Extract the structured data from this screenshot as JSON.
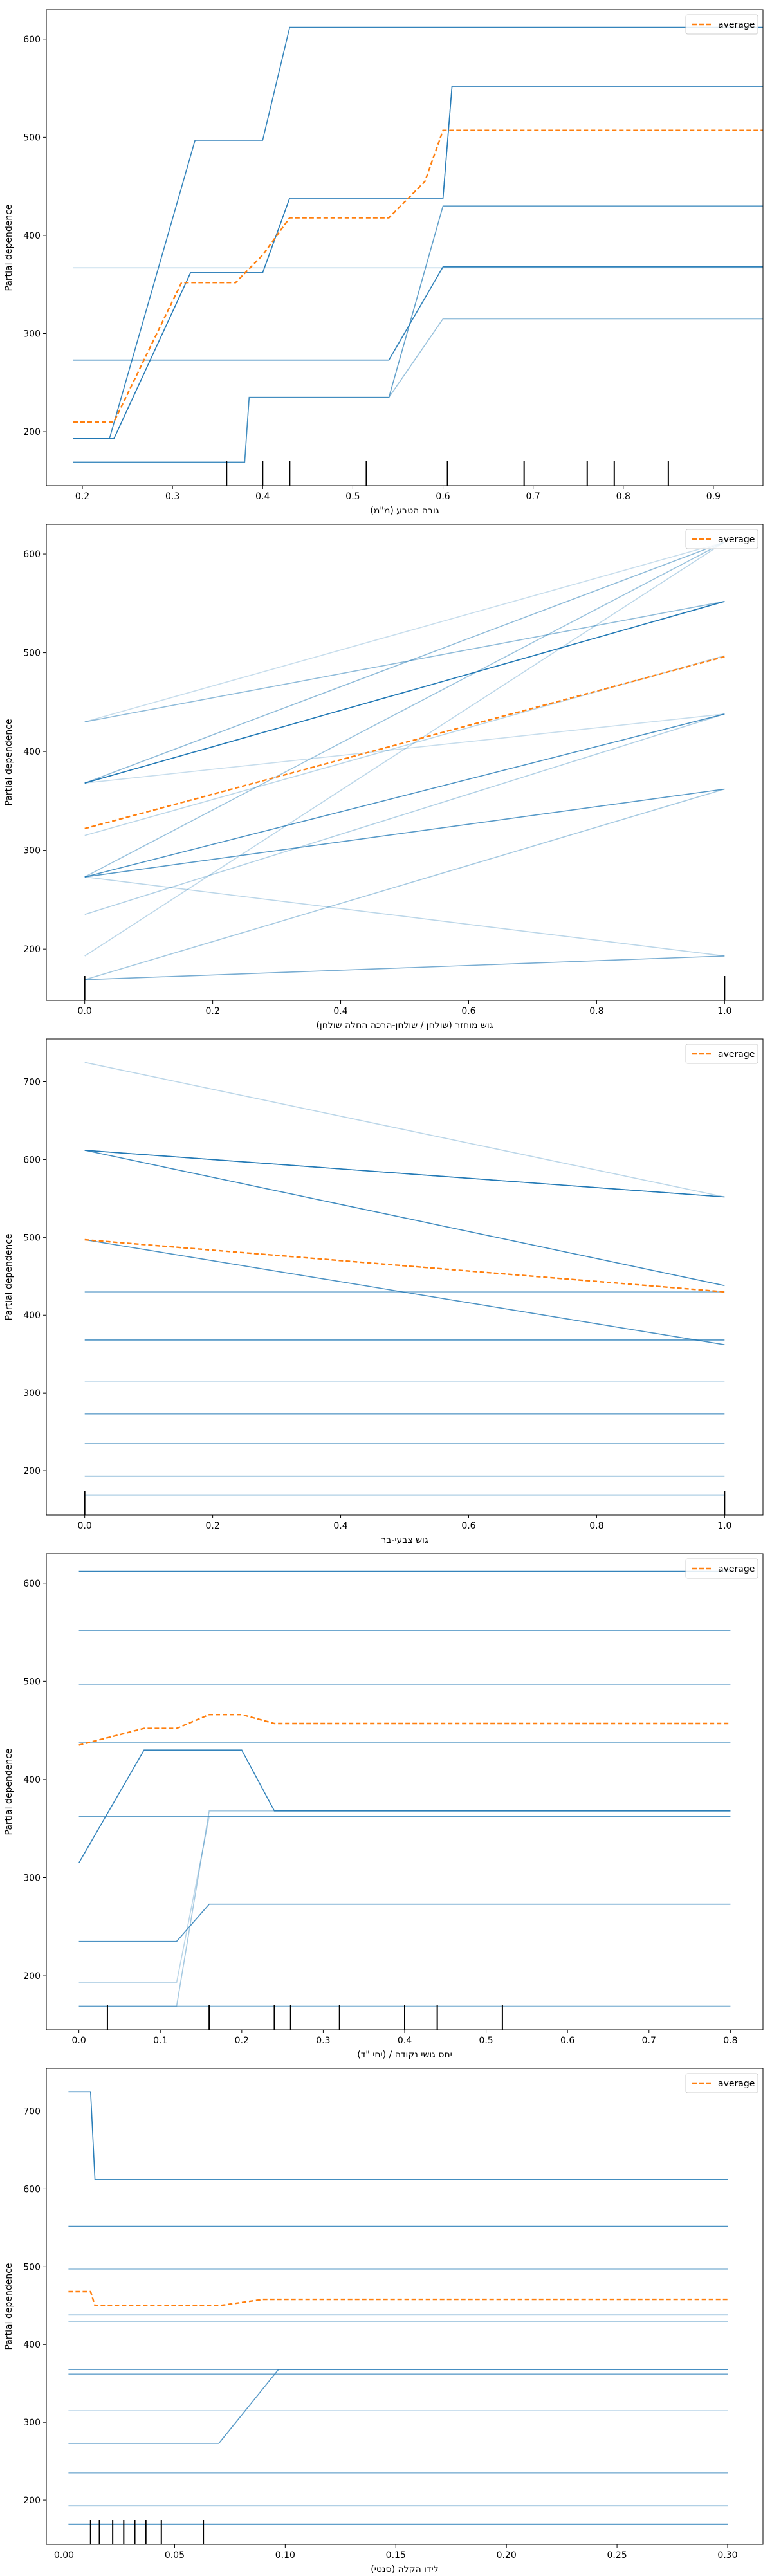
{
  "chart_data": [
    {
      "type": "line",
      "ylabel": "Partial dependence",
      "xlabel": "גובה הטבע (מ\"מ)",
      "legend": {
        "label": "average",
        "placement": "top-right"
      },
      "xlim": [
        0.16,
        0.955
      ],
      "ylim": [
        145,
        630
      ],
      "xticks": [
        0.2,
        0.3,
        0.4,
        0.5,
        0.6,
        0.7,
        0.8,
        0.9
      ],
      "yticks": [
        200,
        300,
        400,
        500,
        600
      ],
      "xtick_labels": [
        "0.2",
        "0.3",
        "0.4",
        "0.5",
        "0.6",
        "0.7",
        "0.8",
        "0.9"
      ],
      "ytick_labels": [
        "200",
        "300",
        "400",
        "500",
        "600"
      ],
      "grid": false,
      "rug": [
        0.36,
        0.4,
        0.43,
        0.515,
        0.605,
        0.69,
        0.76,
        0.79,
        0.85
      ],
      "ice_lines": [
        {
          "x": [
            0.19,
            0.23,
            0.325,
            0.4,
            0.43,
            0.955
          ],
          "y": [
            193,
            193,
            497,
            497,
            612,
            612
          ],
          "opacity": 0.9
        },
        {
          "x": [
            0.19,
            0.235,
            0.32,
            0.4,
            0.43,
            0.6,
            0.61,
            0.955
          ],
          "y": [
            193,
            193,
            362,
            362,
            438,
            438,
            552,
            552
          ],
          "opacity": 0.9
        },
        {
          "x": [
            0.19,
            0.235,
            0.32,
            0.4,
            0.43,
            0.6,
            0.61,
            0.955
          ],
          "y": [
            193,
            193,
            362,
            362,
            438,
            438,
            552,
            552
          ],
          "opacity": 0.6
        },
        {
          "x": [
            0.19,
            0.54,
            0.6,
            0.955
          ],
          "y": [
            273,
            273,
            368,
            368
          ],
          "opacity": 0.85
        },
        {
          "x": [
            0.19,
            0.54,
            0.6,
            0.955
          ],
          "y": [
            273,
            273,
            368,
            368
          ],
          "opacity": 0.45
        },
        {
          "x": [
            0.19,
            0.38,
            0.385,
            0.54,
            0.6,
            0.955
          ],
          "y": [
            169,
            169,
            235,
            235,
            430,
            430
          ],
          "opacity": 0.7
        },
        {
          "x": [
            0.19,
            0.38,
            0.385,
            0.54,
            0.6,
            0.955
          ],
          "y": [
            169,
            169,
            235,
            235,
            315,
            315
          ],
          "opacity": 0.45
        },
        {
          "x": [
            0.19,
            0.955
          ],
          "y": [
            367,
            367
          ],
          "opacity": 0.35
        }
      ],
      "average": {
        "x": [
          0.19,
          0.235,
          0.31,
          0.37,
          0.4,
          0.43,
          0.54,
          0.58,
          0.6,
          0.955
        ],
        "y": [
          210,
          210,
          352,
          352,
          380,
          418,
          418,
          455,
          507,
          507
        ]
      }
    },
    {
      "type": "line",
      "ylabel": "Partial dependence",
      "xlabel": "גוש מוחזר (שולחן / שולחן-הרכה החלה שולחן)",
      "legend": {
        "label": "average",
        "placement": "top-right"
      },
      "xlim": [
        -0.06,
        1.06
      ],
      "ylim": [
        148,
        630
      ],
      "xticks": [
        0.0,
        0.2,
        0.4,
        0.6,
        0.8,
        1.0
      ],
      "yticks": [
        200,
        300,
        400,
        500,
        600
      ],
      "xtick_labels": [
        "0.0",
        "0.2",
        "0.4",
        "0.6",
        "0.8",
        "1.0"
      ],
      "ytick_labels": [
        "200",
        "300",
        "400",
        "500",
        "600"
      ],
      "grid": false,
      "rug": [
        0.0,
        1.0
      ],
      "ice_lines": [
        {
          "x": [
            0,
            1
          ],
          "y": [
            368,
            552
          ],
          "opacity": 0.95
        },
        {
          "x": [
            0,
            1
          ],
          "y": [
            368,
            552
          ],
          "opacity": 0.7
        },
        {
          "x": [
            0,
            1
          ],
          "y": [
            273,
            438
          ],
          "opacity": 0.8
        },
        {
          "x": [
            0,
            1
          ],
          "y": [
            273,
            362
          ],
          "opacity": 0.75
        },
        {
          "x": [
            0,
            1
          ],
          "y": [
            273,
            612
          ],
          "opacity": 0.45
        },
        {
          "x": [
            0,
            1
          ],
          "y": [
            368,
            612
          ],
          "opacity": 0.5
        },
        {
          "x": [
            0,
            1
          ],
          "y": [
            430,
            552
          ],
          "opacity": 0.5
        },
        {
          "x": [
            0,
            1
          ],
          "y": [
            169,
            362
          ],
          "opacity": 0.4
        },
        {
          "x": [
            0,
            1
          ],
          "y": [
            169,
            193
          ],
          "opacity": 0.6
        },
        {
          "x": [
            0,
            1
          ],
          "y": [
            193,
            612
          ],
          "opacity": 0.3
        },
        {
          "x": [
            0,
            1
          ],
          "y": [
            235,
            438
          ],
          "opacity": 0.35
        },
        {
          "x": [
            0,
            1
          ],
          "y": [
            315,
            497
          ],
          "opacity": 0.3
        },
        {
          "x": [
            0,
            1
          ],
          "y": [
            273,
            193
          ],
          "opacity": 0.3
        },
        {
          "x": [
            0,
            1
          ],
          "y": [
            368,
            438
          ],
          "opacity": 0.25
        },
        {
          "x": [
            0,
            1
          ],
          "y": [
            430,
            612
          ],
          "opacity": 0.25
        }
      ],
      "average": {
        "x": [
          0,
          1
        ],
        "y": [
          322,
          496
        ]
      }
    },
    {
      "type": "line",
      "ylabel": "Partial dependence",
      "xlabel": "גוש צבעי-בר",
      "legend": {
        "label": "average",
        "placement": "top-right"
      },
      "xlim": [
        -0.06,
        1.06
      ],
      "ylim": [
        143,
        755
      ],
      "xticks": [
        0.0,
        0.2,
        0.4,
        0.6,
        0.8,
        1.0
      ],
      "yticks": [
        200,
        300,
        400,
        500,
        600,
        700
      ],
      "xtick_labels": [
        "0.0",
        "0.2",
        "0.4",
        "0.6",
        "0.8",
        "1.0"
      ],
      "ytick_labels": [
        "200",
        "300",
        "400",
        "500",
        "600",
        "700"
      ],
      "grid": false,
      "rug": [
        0.0,
        1.0
      ],
      "ice_lines": [
        {
          "x": [
            0,
            1
          ],
          "y": [
            725,
            552
          ],
          "opacity": 0.3
        },
        {
          "x": [
            0,
            1
          ],
          "y": [
            612,
            552
          ],
          "opacity": 0.95
        },
        {
          "x": [
            0,
            1
          ],
          "y": [
            612,
            552
          ],
          "opacity": 0.7
        },
        {
          "x": [
            0,
            1
          ],
          "y": [
            612,
            438
          ],
          "opacity": 0.85
        },
        {
          "x": [
            0,
            1
          ],
          "y": [
            497,
            362
          ],
          "opacity": 0.8
        },
        {
          "x": [
            0,
            1
          ],
          "y": [
            430,
            430
          ],
          "opacity": 0.6
        },
        {
          "x": [
            0,
            1
          ],
          "y": [
            368,
            368
          ],
          "opacity": 0.8
        },
        {
          "x": [
            0,
            1
          ],
          "y": [
            315,
            315
          ],
          "opacity": 0.3
        },
        {
          "x": [
            0,
            1
          ],
          "y": [
            273,
            273
          ],
          "opacity": 0.6
        },
        {
          "x": [
            0,
            1
          ],
          "y": [
            235,
            235
          ],
          "opacity": 0.5
        },
        {
          "x": [
            0,
            1
          ],
          "y": [
            193,
            193
          ],
          "opacity": 0.35
        },
        {
          "x": [
            0,
            1
          ],
          "y": [
            169,
            169
          ],
          "opacity": 0.7
        }
      ],
      "average": {
        "x": [
          0,
          1
        ],
        "y": [
          497,
          430
        ]
      }
    },
    {
      "type": "line",
      "ylabel": "Partial dependence",
      "xlabel": "יחס גושי נקודה / (יחי \"ד)",
      "legend": {
        "label": "average",
        "placement": "top-right"
      },
      "xlim": [
        -0.04,
        0.84
      ],
      "ylim": [
        145,
        630
      ],
      "xticks": [
        0.0,
        0.1,
        0.2,
        0.3,
        0.4,
        0.5,
        0.6,
        0.7,
        0.8
      ],
      "yticks": [
        200,
        300,
        400,
        500,
        600
      ],
      "xtick_labels": [
        "0.0",
        "0.1",
        "0.2",
        "0.3",
        "0.4",
        "0.5",
        "0.6",
        "0.7",
        "0.8"
      ],
      "ytick_labels": [
        "200",
        "300",
        "400",
        "500",
        "600"
      ],
      "grid": false,
      "rug": [
        0.035,
        0.16,
        0.24,
        0.26,
        0.32,
        0.4,
        0.44,
        0.52
      ],
      "ice_lines": [
        {
          "x": [
            0,
            0.8
          ],
          "y": [
            612,
            612
          ],
          "opacity": 0.9
        },
        {
          "x": [
            0,
            0.8
          ],
          "y": [
            552,
            552
          ],
          "opacity": 0.85
        },
        {
          "x": [
            0,
            0.8
          ],
          "y": [
            497,
            497
          ],
          "opacity": 0.6
        },
        {
          "x": [
            0,
            0.8
          ],
          "y": [
            438,
            438
          ],
          "opacity": 0.7
        },
        {
          "x": [
            0,
            0.08,
            0.2,
            0.24,
            0.8
          ],
          "y": [
            315,
            430,
            430,
            368,
            368
          ],
          "opacity": 0.9
        },
        {
          "x": [
            0,
            0.8
          ],
          "y": [
            362,
            362
          ],
          "opacity": 0.8
        },
        {
          "x": [
            0,
            0.12,
            0.16,
            0.8
          ],
          "y": [
            235,
            235,
            273,
            273
          ],
          "opacity": 0.8
        },
        {
          "x": [
            0,
            0.12,
            0.16,
            0.8
          ],
          "y": [
            169,
            169,
            368,
            368
          ],
          "opacity": 0.4
        },
        {
          "x": [
            0,
            0.12,
            0.16,
            0.8
          ],
          "y": [
            193,
            193,
            362,
            362
          ],
          "opacity": 0.3
        },
        {
          "x": [
            0,
            0.8
          ],
          "y": [
            169,
            169
          ],
          "opacity": 0.5
        }
      ],
      "average": {
        "x": [
          0,
          0.08,
          0.12,
          0.16,
          0.2,
          0.24,
          0.8
        ],
        "y": [
          435,
          452,
          452,
          466,
          466,
          457,
          457
        ]
      }
    },
    {
      "type": "line",
      "ylabel": "Partial dependence",
      "xlabel": "לידו הקלה (סנטי)",
      "legend": {
        "label": "average",
        "placement": "top-right"
      },
      "xlim": [
        -0.008,
        0.316
      ],
      "ylim": [
        143,
        755
      ],
      "xticks": [
        0.0,
        0.05,
        0.1,
        0.15,
        0.2,
        0.25,
        0.3
      ],
      "yticks": [
        200,
        300,
        400,
        500,
        600,
        700
      ],
      "xtick_labels": [
        "0.00",
        "0.05",
        "0.10",
        "0.15",
        "0.20",
        "0.25",
        "0.30"
      ],
      "ytick_labels": [
        "200",
        "300",
        "400",
        "500",
        "600",
        "700"
      ],
      "grid": false,
      "rug": [
        0.012,
        0.016,
        0.022,
        0.027,
        0.032,
        0.037,
        0.044,
        0.063
      ],
      "ice_lines": [
        {
          "x": [
            0.002,
            0.012,
            0.014,
            0.3
          ],
          "y": [
            725,
            725,
            612,
            612
          ],
          "opacity": 0.95
        },
        {
          "x": [
            0.002,
            0.3
          ],
          "y": [
            552,
            552
          ],
          "opacity": 0.8
        },
        {
          "x": [
            0.002,
            0.3
          ],
          "y": [
            497,
            497
          ],
          "opacity": 0.5
        },
        {
          "x": [
            0.002,
            0.3
          ],
          "y": [
            438,
            438
          ],
          "opacity": 0.6
        },
        {
          "x": [
            0.002,
            0.3
          ],
          "y": [
            430,
            430
          ],
          "opacity": 0.5
        },
        {
          "x": [
            0.002,
            0.3
          ],
          "y": [
            368,
            368
          ],
          "opacity": 0.9
        },
        {
          "x": [
            0.002,
            0.3
          ],
          "y": [
            362,
            362
          ],
          "opacity": 0.6
        },
        {
          "x": [
            0.002,
            0.07,
            0.097,
            0.3
          ],
          "y": [
            273,
            273,
            368,
            368
          ],
          "opacity": 0.75
        },
        {
          "x": [
            0.002,
            0.3
          ],
          "y": [
            315,
            315
          ],
          "opacity": 0.3
        },
        {
          "x": [
            0.002,
            0.3
          ],
          "y": [
            235,
            235
          ],
          "opacity": 0.5
        },
        {
          "x": [
            0.002,
            0.3
          ],
          "y": [
            193,
            193
          ],
          "opacity": 0.35
        },
        {
          "x": [
            0.002,
            0.3
          ],
          "y": [
            169,
            169
          ],
          "opacity": 0.7
        }
      ],
      "average": {
        "x": [
          0.002,
          0.012,
          0.014,
          0.07,
          0.09,
          0.3
        ],
        "y": [
          468,
          468,
          450,
          450,
          458,
          458
        ]
      }
    }
  ],
  "colors": {
    "ice": "#1f77b4",
    "average": "#ff7f0e",
    "axis": "#000000"
  }
}
